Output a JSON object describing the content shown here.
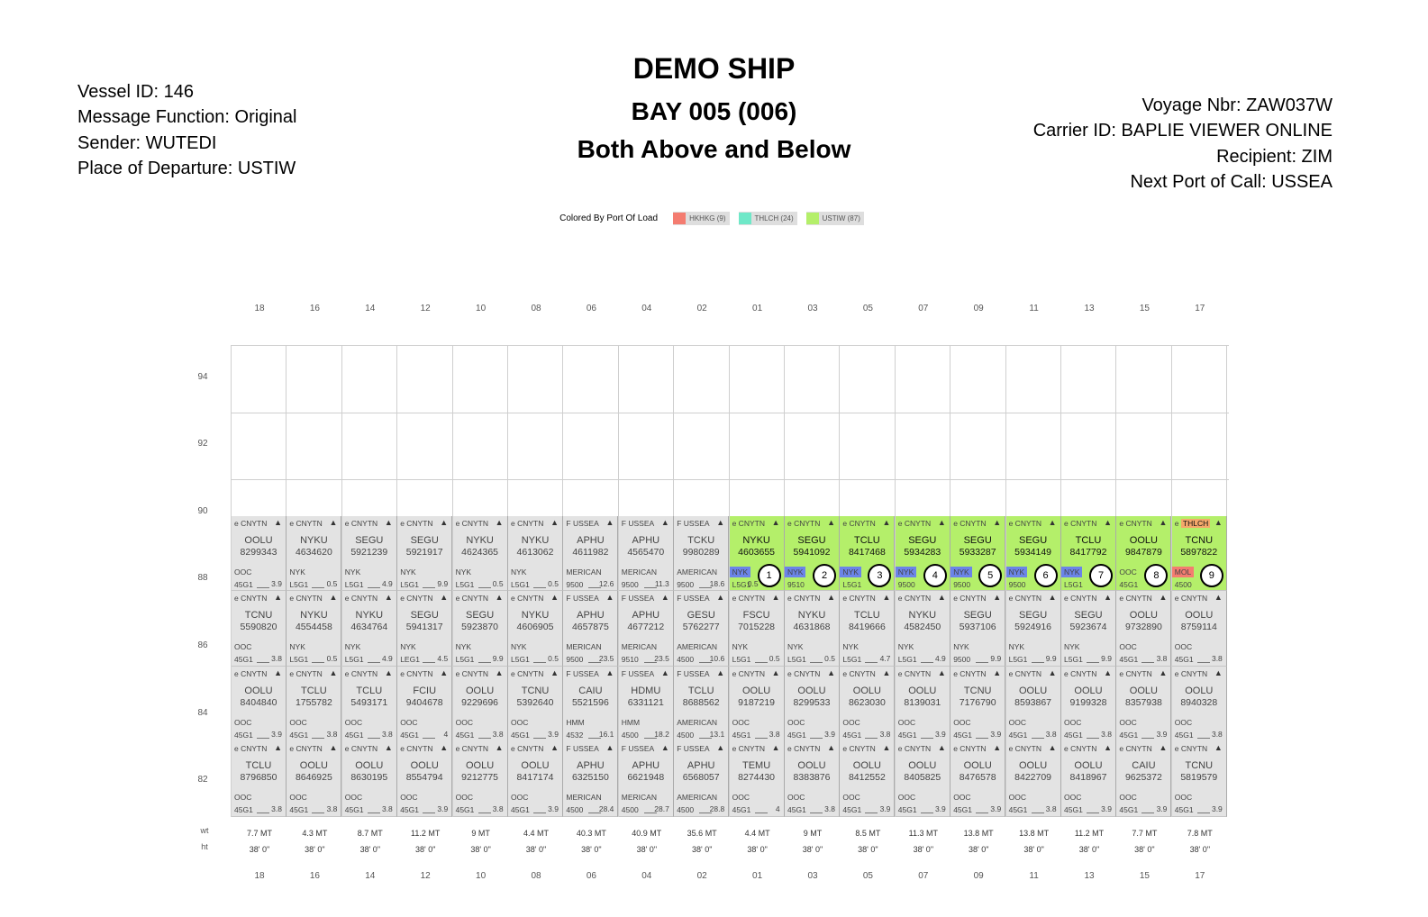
{
  "header": {
    "ship_name": "DEMO SHIP",
    "bay": "BAY 005 (006)",
    "position": "Both Above and Below",
    "left_info": [
      "Vessel ID: 146",
      "Message Function: Original",
      "Sender: WUTEDI",
      "Place of Departure: USTIW"
    ],
    "right_info": [
      "Voyage Nbr: ZAW037W",
      "Carrier ID: BAPLIE VIEWER ONLINE",
      "Recipient: ZIM",
      "Next Port of Call: USSEA"
    ]
  },
  "legend": {
    "title": "Colored By Port Of Load",
    "items": [
      {
        "label": "HKHKG (9)",
        "color": "#f47c70"
      },
      {
        "label": "THLCH (24)",
        "color": "#6fe8c8"
      },
      {
        "label": "USTIW (87)",
        "color": "#b4ef6a"
      }
    ]
  },
  "columns": [
    "18",
    "16",
    "14",
    "12",
    "10",
    "08",
    "06",
    "04",
    "02",
    "01",
    "03",
    "05",
    "07",
    "09",
    "11",
    "13",
    "15",
    "17"
  ],
  "tiers": [
    "94",
    "92",
    "90",
    "88",
    "86",
    "84",
    "82"
  ],
  "side_labels": {
    "weight": "wt",
    "height": "ht"
  },
  "colors": {
    "slot_gray": "#e3e3e3",
    "slot_green": "#b4ef6a",
    "tag_blue": "#6b84e8",
    "tag_red": "#f47c70",
    "grid_line": "#cfcfcf"
  },
  "weights": [
    "7.7 MT",
    "4.3 MT",
    "8.7 MT",
    "11.2 MT",
    "9 MT",
    "4.4 MT",
    "40.3 MT",
    "40.9 MT",
    "35.6 MT",
    "4.4 MT",
    "9 MT",
    "8.5 MT",
    "11.3 MT",
    "13.8 MT",
    "13.8 MT",
    "11.2 MT",
    "7.7 MT",
    "7.8 MT"
  ],
  "heights": [
    "38' 0\"",
    "38' 0\"",
    "38' 0\"",
    "38' 0\"",
    "38' 0\"",
    "38' 0\"",
    "38' 0\"",
    "38' 0\"",
    "38' 0\"",
    "38' 0\"",
    "38' 0\"",
    "38' 0\"",
    "38' 0\"",
    "38' 0\"",
    "38' 0\"",
    "38' 0\"",
    "38' 0\"",
    "38' 0\""
  ],
  "tier88": [
    {
      "status": "e CNYTN",
      "prefix": "OOLU",
      "number": "8299343",
      "operator": "OOC",
      "iso": "45G1",
      "value": "3.9",
      "green": false
    },
    {
      "status": "e CNYTN",
      "prefix": "NYKU",
      "number": "4634620",
      "operator": "NYK",
      "iso": "L5G1",
      "value": "0.5",
      "green": false
    },
    {
      "status": "e CNYTN",
      "prefix": "SEGU",
      "number": "5921239",
      "operator": "NYK",
      "iso": "L5G1",
      "value": "4.9",
      "green": false
    },
    {
      "status": "e CNYTN",
      "prefix": "SEGU",
      "number": "5921917",
      "operator": "NYK",
      "iso": "L5G1",
      "value": "9.9",
      "green": false
    },
    {
      "status": "e CNYTN",
      "prefix": "NYKU",
      "number": "4624365",
      "operator": "NYK",
      "iso": "L5G1",
      "value": "0.5",
      "green": false
    },
    {
      "status": "e CNYTN",
      "prefix": "NYKU",
      "number": "4613062",
      "operator": "NYK",
      "iso": "L5G1",
      "value": "0.5",
      "green": false
    },
    {
      "status": "F USSEA",
      "prefix": "APHU",
      "number": "4611982",
      "operator": "MERICAN",
      "iso": "9500",
      "value": "12.6",
      "green": false
    },
    {
      "status": "F USSEA",
      "prefix": "APHU",
      "number": "4565470",
      "operator": "MERICAN",
      "iso": "9500",
      "value": "11.3",
      "green": false
    },
    {
      "status": "F USSEA",
      "prefix": "TCKU",
      "number": "9980289",
      "operator": "AMERICAN",
      "iso": "9500",
      "value": "18.6",
      "green": false
    },
    {
      "status": "e CNYTN",
      "prefix": "NYKU",
      "number": "4603655",
      "operator": "NYK",
      "iso": "L5G1",
      "value": "0.5",
      "green": true,
      "tag": "blue",
      "circle": "1"
    },
    {
      "status": "e CNYTN",
      "prefix": "SEGU",
      "number": "5941092",
      "operator": "NYK",
      "iso": "9510",
      "value": "",
      "green": true,
      "tag": "blue",
      "circle": "2"
    },
    {
      "status": "e CNYTN",
      "prefix": "TCLU",
      "number": "8417468",
      "operator": "NYK",
      "iso": "L5G1",
      "value": "",
      "green": true,
      "tag": "blue",
      "circle": "3"
    },
    {
      "status": "e CNYTN",
      "prefix": "SEGU",
      "number": "5934283",
      "operator": "NYK",
      "iso": "9500",
      "value": "",
      "green": true,
      "tag": "blue",
      "circle": "4"
    },
    {
      "status": "e CNYTN",
      "prefix": "SEGU",
      "number": "5933287",
      "operator": "NYK",
      "iso": "9500",
      "value": "",
      "green": true,
      "tag": "blue",
      "circle": "5"
    },
    {
      "status": "e CNYTN",
      "prefix": "SEGU",
      "number": "5934149",
      "operator": "NYK",
      "iso": "9500",
      "value": "",
      "green": true,
      "tag": "blue",
      "circle": "6"
    },
    {
      "status": "e CNYTN",
      "prefix": "TCLU",
      "number": "8417792",
      "operator": "NYK",
      "iso": "L5G1",
      "value": "",
      "green": true,
      "tag": "blue",
      "circle": "7"
    },
    {
      "status": "e CNYTN",
      "prefix": "OOLU",
      "number": "9847879",
      "operator": "OOC",
      "iso": "45G1",
      "value": "",
      "green": true,
      "tag": "none",
      "circle": "8"
    },
    {
      "status": "e THLCH",
      "prefix": "TCNU",
      "number": "5897822",
      "operator": "MOL",
      "iso": "4500",
      "value": "",
      "green": true,
      "tag": "red",
      "circle": "9",
      "status_tag": "orange"
    }
  ],
  "tier86": [
    {
      "status": "e CNYTN",
      "prefix": "TCNU",
      "number": "5590820",
      "operator": "OOC",
      "iso": "45G1",
      "value": "3.8"
    },
    {
      "status": "e CNYTN",
      "prefix": "NYKU",
      "number": "4554458",
      "operator": "NYK",
      "iso": "L5G1",
      "value": "0.5"
    },
    {
      "status": "e CNYTN",
      "prefix": "NYKU",
      "number": "4634764",
      "operator": "NYK",
      "iso": "L5G1",
      "value": "4.9"
    },
    {
      "status": "e CNYTN",
      "prefix": "SEGU",
      "number": "5941317",
      "operator": "NYK",
      "iso": "LEG1",
      "value": "4.5"
    },
    {
      "status": "e CNYTN",
      "prefix": "SEGU",
      "number": "5923870",
      "operator": "NYK",
      "iso": "L5G1",
      "value": "9.9"
    },
    {
      "status": "e CNYTN",
      "prefix": "NYKU",
      "number": "4606905",
      "operator": "NYK",
      "iso": "L5G1",
      "value": "0.5"
    },
    {
      "status": "F USSEA",
      "prefix": "APHU",
      "number": "4657875",
      "operator": "MERICAN",
      "iso": "9500",
      "value": "23.5"
    },
    {
      "status": "F USSEA",
      "prefix": "APHU",
      "number": "4677212",
      "operator": "MERICAN",
      "iso": "9510",
      "value": "23.5"
    },
    {
      "status": "F USSEA",
      "prefix": "GESU",
      "number": "5762277",
      "operator": "AMERICAN",
      "iso": "4500",
      "value": "10.6"
    },
    {
      "status": "e CNYTN",
      "prefix": "FSCU",
      "number": "7015228",
      "operator": "NYK",
      "iso": "L5G1",
      "value": "0.5"
    },
    {
      "status": "e CNYTN",
      "prefix": "NYKU",
      "number": "4631868",
      "operator": "NYK",
      "iso": "L5G1",
      "value": "0.5"
    },
    {
      "status": "e CNYTN",
      "prefix": "TCLU",
      "number": "8419666",
      "operator": "NYK",
      "iso": "L5G1",
      "value": "4.7"
    },
    {
      "status": "e CNYTN",
      "prefix": "NYKU",
      "number": "4582450",
      "operator": "NYK",
      "iso": "L5G1",
      "value": "4.9"
    },
    {
      "status": "e CNYTN",
      "prefix": "SEGU",
      "number": "5937106",
      "operator": "NYK",
      "iso": "9500",
      "value": "9.9"
    },
    {
      "status": "e CNYTN",
      "prefix": "SEGU",
      "number": "5924916",
      "operator": "NYK",
      "iso": "L5G1",
      "value": "9.9"
    },
    {
      "status": "e CNYTN",
      "prefix": "SEGU",
      "number": "5923674",
      "operator": "NYK",
      "iso": "L5G1",
      "value": "9.9"
    },
    {
      "status": "e CNYTN",
      "prefix": "OOLU",
      "number": "9732890",
      "operator": "OOC",
      "iso": "45G1",
      "value": "3.8"
    },
    {
      "status": "e CNYTN",
      "prefix": "OOLU",
      "number": "8759114",
      "operator": "OOC",
      "iso": "45G1",
      "value": "3.8"
    }
  ],
  "tier84": [
    {
      "status": "e CNYTN",
      "prefix": "OOLU",
      "number": "8404840",
      "operator": "OOC",
      "iso": "45G1",
      "value": "3.9"
    },
    {
      "status": "e CNYTN",
      "prefix": "TCLU",
      "number": "1755782",
      "operator": "OOC",
      "iso": "45G1",
      "value": "3.8"
    },
    {
      "status": "e CNYTN",
      "prefix": "TCLU",
      "number": "5493171",
      "operator": "OOC",
      "iso": "45G1",
      "value": "3.8"
    },
    {
      "status": "e CNYTN",
      "prefix": "FCIU",
      "number": "9404678",
      "operator": "OOC",
      "iso": "45G1",
      "value": "4"
    },
    {
      "status": "e CNYTN",
      "prefix": "OOLU",
      "number": "9229696",
      "operator": "OOC",
      "iso": "45G1",
      "value": "3.8"
    },
    {
      "status": "e CNYTN",
      "prefix": "TCNU",
      "number": "5392640",
      "operator": "OOC",
      "iso": "45G1",
      "value": "3.9"
    },
    {
      "status": "F USSEA",
      "prefix": "CAIU",
      "number": "5521596",
      "operator": "HMM",
      "iso": "4532",
      "value": "16.1"
    },
    {
      "status": "F USSEA",
      "prefix": "HDMU",
      "number": "6331121",
      "operator": "HMM",
      "iso": "4500",
      "value": "18.2"
    },
    {
      "status": "F USSEA",
      "prefix": "TCLU",
      "number": "8688562",
      "operator": "AMERICAN",
      "iso": "4500",
      "value": "13.1"
    },
    {
      "status": "e CNYTN",
      "prefix": "OOLU",
      "number": "9187219",
      "operator": "OOC",
      "iso": "45G1",
      "value": "3.8"
    },
    {
      "status": "e CNYTN",
      "prefix": "OOLU",
      "number": "8299533",
      "operator": "OOC",
      "iso": "45G1",
      "value": "3.9"
    },
    {
      "status": "e CNYTN",
      "prefix": "OOLU",
      "number": "8623030",
      "operator": "OOC",
      "iso": "45G1",
      "value": "3.8"
    },
    {
      "status": "e CNYTN",
      "prefix": "OOLU",
      "number": "8139031",
      "operator": "OOC",
      "iso": "45G1",
      "value": "3.9"
    },
    {
      "status": "e CNYTN",
      "prefix": "TCNU",
      "number": "7176790",
      "operator": "OOC",
      "iso": "45G1",
      "value": "3.9"
    },
    {
      "status": "e CNYTN",
      "prefix": "OOLU",
      "number": "8593867",
      "operator": "OOC",
      "iso": "45G1",
      "value": "3.8"
    },
    {
      "status": "e CNYTN",
      "prefix": "OOLU",
      "number": "9199328",
      "operator": "OOC",
      "iso": "45G1",
      "value": "3.8"
    },
    {
      "status": "e CNYTN",
      "prefix": "OOLU",
      "number": "8357938",
      "operator": "OOC",
      "iso": "45G1",
      "value": "3.9"
    },
    {
      "status": "e CNYTN",
      "prefix": "OOLU",
      "number": "8940328",
      "operator": "OOC",
      "iso": "45G1",
      "value": "3.8"
    }
  ],
  "tier82": [
    {
      "status": "e CNYTN",
      "prefix": "TCLU",
      "number": "8796850",
      "operator": "OOC",
      "iso": "45G1",
      "value": "3.8"
    },
    {
      "status": "e CNYTN",
      "prefix": "OOLU",
      "number": "8646925",
      "operator": "OOC",
      "iso": "45G1",
      "value": "3.8"
    },
    {
      "status": "e CNYTN",
      "prefix": "OOLU",
      "number": "8630195",
      "operator": "OOC",
      "iso": "45G1",
      "value": "3.8"
    },
    {
      "status": "e CNYTN",
      "prefix": "OOLU",
      "number": "8554794",
      "operator": "OOC",
      "iso": "45G1",
      "value": "3.9"
    },
    {
      "status": "e CNYTN",
      "prefix": "OOLU",
      "number": "9212775",
      "operator": "OOC",
      "iso": "45G1",
      "value": "3.8"
    },
    {
      "status": "e CNYTN",
      "prefix": "OOLU",
      "number": "8417174",
      "operator": "OOC",
      "iso": "45G1",
      "value": "3.9"
    },
    {
      "status": "F USSEA",
      "prefix": "APHU",
      "number": "6325150",
      "operator": "MERICAN",
      "iso": "4500",
      "value": "28.4"
    },
    {
      "status": "F USSEA",
      "prefix": "APHU",
      "number": "6621948",
      "operator": "MERICAN",
      "iso": "4500",
      "value": "28.7"
    },
    {
      "status": "F USSEA",
      "prefix": "APHU",
      "number": "6568057",
      "operator": "AMERICAN",
      "iso": "4500",
      "value": "28.8"
    },
    {
      "status": "e CNYTN",
      "prefix": "TEMU",
      "number": "8274430",
      "operator": "OOC",
      "iso": "45G1",
      "value": "4"
    },
    {
      "status": "e CNYTN",
      "prefix": "OOLU",
      "number": "8383876",
      "operator": "OOC",
      "iso": "45G1",
      "value": "3.8"
    },
    {
      "status": "e CNYTN",
      "prefix": "OOLU",
      "number": "8412552",
      "operator": "OOC",
      "iso": "45G1",
      "value": "3.9"
    },
    {
      "status": "e CNYTN",
      "prefix": "OOLU",
      "number": "8405825",
      "operator": "OOC",
      "iso": "45G1",
      "value": "3.9"
    },
    {
      "status": "e CNYTN",
      "prefix": "OOLU",
      "number": "8476578",
      "operator": "OOC",
      "iso": "45G1",
      "value": "3.9"
    },
    {
      "status": "e CNYTN",
      "prefix": "OOLU",
      "number": "8422709",
      "operator": "OOC",
      "iso": "45G1",
      "value": "3.8"
    },
    {
      "status": "e CNYTN",
      "prefix": "OOLU",
      "number": "8418967",
      "operator": "OOC",
      "iso": "45G1",
      "value": "3.9"
    },
    {
      "status": "e CNYTN",
      "prefix": "CAIU",
      "number": "9625372",
      "operator": "OOC",
      "iso": "45G1",
      "value": "3.9"
    },
    {
      "status": "e CNYTN",
      "prefix": "TCNU",
      "number": "5819579",
      "operator": "OOC",
      "iso": "45G1",
      "value": "3.9"
    }
  ]
}
